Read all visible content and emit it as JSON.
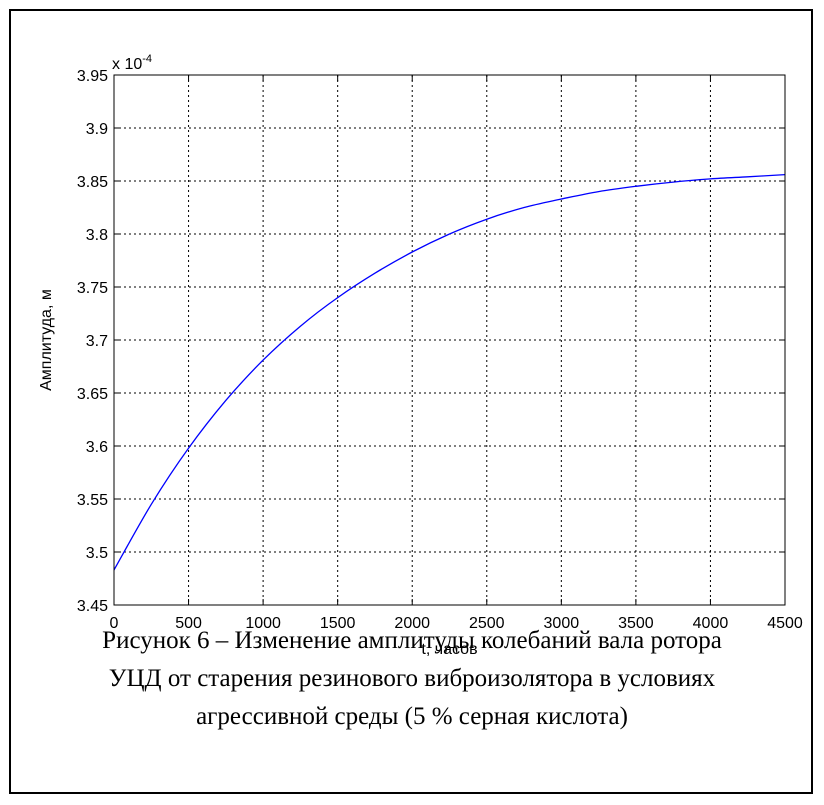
{
  "chart_data": {
    "type": "line",
    "xlabel": "t, часов",
    "ylabel": "Амплитуда, м",
    "exponent_label": "x 10",
    "exponent_power": "-4",
    "xlim": [
      0,
      4500
    ],
    "ylim": [
      3.45,
      3.95
    ],
    "x_ticks": [
      "0",
      "500",
      "1000",
      "1500",
      "2000",
      "2500",
      "3000",
      "3500",
      "4000",
      "4500"
    ],
    "y_ticks": [
      "3.45",
      "3.5",
      "3.55",
      "3.6",
      "3.65",
      "3.7",
      "3.75",
      "3.8",
      "3.85",
      "3.9",
      "3.95"
    ],
    "grid": true,
    "line_color": "#0000ff",
    "series": [
      {
        "x": [
          0,
          250,
          500,
          750,
          1000,
          1250,
          1500,
          1750,
          2000,
          2250,
          2500,
          2750,
          3000,
          3250,
          3500,
          3750,
          4000,
          4250,
          4500
        ],
        "values": [
          3.483,
          3.545,
          3.598,
          3.643,
          3.681,
          3.713,
          3.74,
          3.763,
          3.783,
          3.8,
          3.814,
          3.825,
          3.833,
          3.84,
          3.845,
          3.849,
          3.852,
          3.854,
          3.856
        ]
      }
    ]
  },
  "caption": {
    "line1": "Рисунок 6 – Изменение амплитуды колебаний вала ротора",
    "line2": "УЦД от старения резинового виброизолятора в условиях",
    "line3": "агрессивной среды (5 % серная кислота)"
  }
}
